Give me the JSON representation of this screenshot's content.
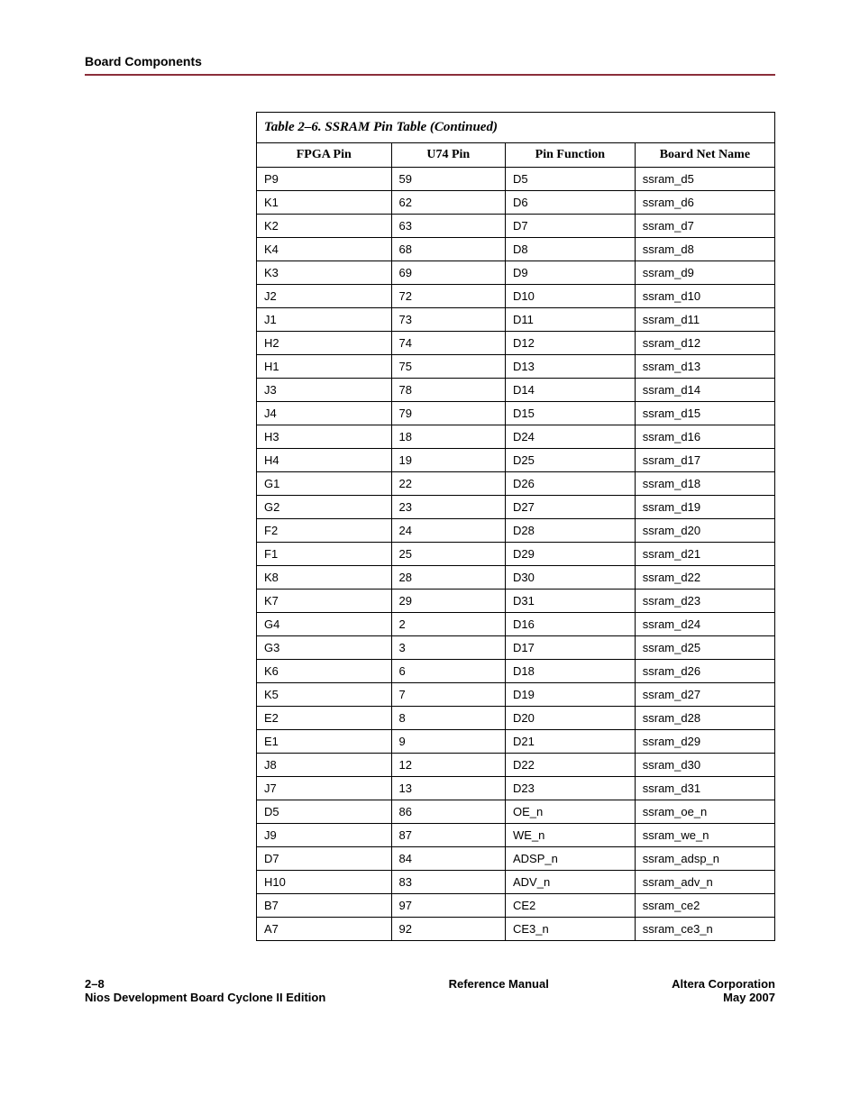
{
  "header": {
    "section": "Board Components",
    "rule_color": "#8b2e3a"
  },
  "table": {
    "caption": "Table 2–6. SSRAM Pin Table (Continued)",
    "columns": [
      "FPGA Pin",
      "U74 Pin",
      "Pin Function",
      "Board Net Name"
    ],
    "col_widths_pct": [
      26,
      22,
      25,
      27
    ],
    "rows": [
      [
        "P9",
        "59",
        "D5",
        "ssram_d5"
      ],
      [
        "K1",
        "62",
        "D6",
        "ssram_d6"
      ],
      [
        "K2",
        "63",
        "D7",
        "ssram_d7"
      ],
      [
        "K4",
        "68",
        "D8",
        "ssram_d8"
      ],
      [
        "K3",
        "69",
        "D9",
        "ssram_d9"
      ],
      [
        "J2",
        "72",
        "D10",
        "ssram_d10"
      ],
      [
        "J1",
        "73",
        "D11",
        "ssram_d11"
      ],
      [
        "H2",
        "74",
        "D12",
        "ssram_d12"
      ],
      [
        "H1",
        "75",
        "D13",
        "ssram_d13"
      ],
      [
        "J3",
        "78",
        "D14",
        "ssram_d14"
      ],
      [
        "J4",
        "79",
        "D15",
        "ssram_d15"
      ],
      [
        "H3",
        "18",
        "D24",
        "ssram_d16"
      ],
      [
        "H4",
        "19",
        "D25",
        "ssram_d17"
      ],
      [
        "G1",
        "22",
        "D26",
        "ssram_d18"
      ],
      [
        "G2",
        "23",
        "D27",
        "ssram_d19"
      ],
      [
        "F2",
        "24",
        "D28",
        "ssram_d20"
      ],
      [
        "F1",
        "25",
        "D29",
        "ssram_d21"
      ],
      [
        "K8",
        "28",
        "D30",
        "ssram_d22"
      ],
      [
        "K7",
        "29",
        "D31",
        "ssram_d23"
      ],
      [
        "G4",
        "2",
        "D16",
        "ssram_d24"
      ],
      [
        "G3",
        "3",
        "D17",
        "ssram_d25"
      ],
      [
        "K6",
        "6",
        "D18",
        "ssram_d26"
      ],
      [
        "K5",
        "7",
        "D19",
        "ssram_d27"
      ],
      [
        "E2",
        "8",
        "D20",
        "ssram_d28"
      ],
      [
        "E1",
        "9",
        "D21",
        "ssram_d29"
      ],
      [
        "J8",
        "12",
        "D22",
        "ssram_d30"
      ],
      [
        "J7",
        "13",
        "D23",
        "ssram_d31"
      ],
      [
        "D5",
        "86",
        "OE_n",
        "ssram_oe_n"
      ],
      [
        "J9",
        "87",
        "WE_n",
        "ssram_we_n"
      ],
      [
        "D7",
        "84",
        "ADSP_n",
        "ssram_adsp_n"
      ],
      [
        "H10",
        "83",
        "ADV_n",
        "ssram_adv_n"
      ],
      [
        "B7",
        "97",
        "CE2",
        "ssram_ce2"
      ],
      [
        "A7",
        "92",
        "CE3_n",
        "ssram_ce3_n"
      ]
    ],
    "header_fontsize": 14,
    "body_fontsize": 13,
    "border_color": "#000000",
    "background_color": "#ffffff"
  },
  "footer": {
    "page": "2–8",
    "book": "Nios Development Board Cyclone II Edition",
    "center": "Reference Manual",
    "company": "Altera Corporation",
    "date": "May 2007"
  }
}
